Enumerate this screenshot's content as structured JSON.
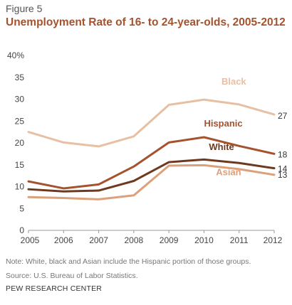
{
  "header": {
    "figure_label": "Figure 5",
    "title": "Unemployment Rate of 16- to 24-year-olds, 2005-2012"
  },
  "chart_data": {
    "type": "line",
    "title": "Unemployment Rate of 16- to 24-year-olds, 2005-2012",
    "x": [
      2005,
      2006,
      2007,
      2008,
      2009,
      2010,
      2011,
      2012
    ],
    "ylim": [
      0,
      40
    ],
    "yticks": [
      0,
      5,
      10,
      15,
      20,
      25,
      30,
      35,
      40
    ],
    "ytick_labels": [
      "0",
      "5",
      "10",
      "15",
      "20",
      "25",
      "30",
      "35",
      "40%"
    ],
    "grid": false,
    "series": [
      {
        "name": "Black",
        "color": "#e8bfa2",
        "values": [
          22.5,
          20.1,
          19.2,
          21.5,
          28.7,
          29.9,
          28.8,
          26.5
        ],
        "end_label": "27"
      },
      {
        "name": "Hispanic",
        "color": "#a5522e",
        "values": [
          11.2,
          9.6,
          10.5,
          14.6,
          20.1,
          21.3,
          19.3,
          17.5
        ],
        "end_label": "18"
      },
      {
        "name": "White",
        "color": "#6e3a1f",
        "values": [
          9.4,
          8.9,
          9.1,
          11.3,
          15.6,
          16.2,
          15.4,
          14.2
        ],
        "end_label": "14"
      },
      {
        "name": "Asian",
        "color": "#dca17a",
        "values": [
          7.6,
          7.4,
          7.1,
          8.0,
          14.8,
          14.9,
          14.0,
          12.7
        ],
        "end_label": "13"
      }
    ]
  },
  "footer": {
    "note": "Note: White, black and Asian include the Hispanic portion of those groups.",
    "source": "Source: U.S. Bureau of Labor Statistics.",
    "credit": "PEW RESEARCH CENTER"
  }
}
